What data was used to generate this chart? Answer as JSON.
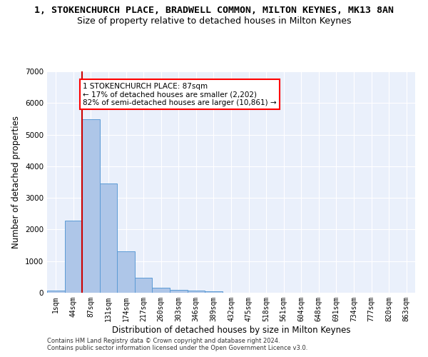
{
  "title": "1, STOKENCHURCH PLACE, BRADWELL COMMON, MILTON KEYNES, MK13 8AN",
  "subtitle": "Size of property relative to detached houses in Milton Keynes",
  "xlabel": "Distribution of detached houses by size in Milton Keynes",
  "ylabel": "Number of detached properties",
  "footnote1": "Contains HM Land Registry data © Crown copyright and database right 2024.",
  "footnote2": "Contains public sector information licensed under the Open Government Licence v3.0.",
  "categories": [
    "1sqm",
    "44sqm",
    "87sqm",
    "131sqm",
    "174sqm",
    "217sqm",
    "260sqm",
    "303sqm",
    "346sqm",
    "389sqm",
    "432sqm",
    "475sqm",
    "518sqm",
    "561sqm",
    "604sqm",
    "648sqm",
    "691sqm",
    "734sqm",
    "777sqm",
    "820sqm",
    "863sqm"
  ],
  "values": [
    75,
    2270,
    5480,
    3450,
    1310,
    470,
    155,
    100,
    70,
    40,
    0,
    0,
    0,
    0,
    0,
    0,
    0,
    0,
    0,
    0,
    0
  ],
  "bar_color": "#aec6e8",
  "bar_edge_color": "#5b9bd5",
  "red_line_index": 2,
  "annotation_text": "1 STOKENCHURCH PLACE: 87sqm\n← 17% of detached houses are smaller (2,202)\n82% of semi-detached houses are larger (10,861) →",
  "annotation_box_color": "white",
  "annotation_box_edge_color": "red",
  "red_line_color": "#cc0000",
  "ylim": [
    0,
    7000
  ],
  "yticks": [
    0,
    1000,
    2000,
    3000,
    4000,
    5000,
    6000,
    7000
  ],
  "bg_color": "#eaf0fb",
  "grid_color": "#ffffff",
  "title_fontsize": 9.5,
  "subtitle_fontsize": 9,
  "axis_label_fontsize": 8.5,
  "tick_fontsize": 7,
  "annotation_fontsize": 7.5,
  "footnote_fontsize": 6
}
